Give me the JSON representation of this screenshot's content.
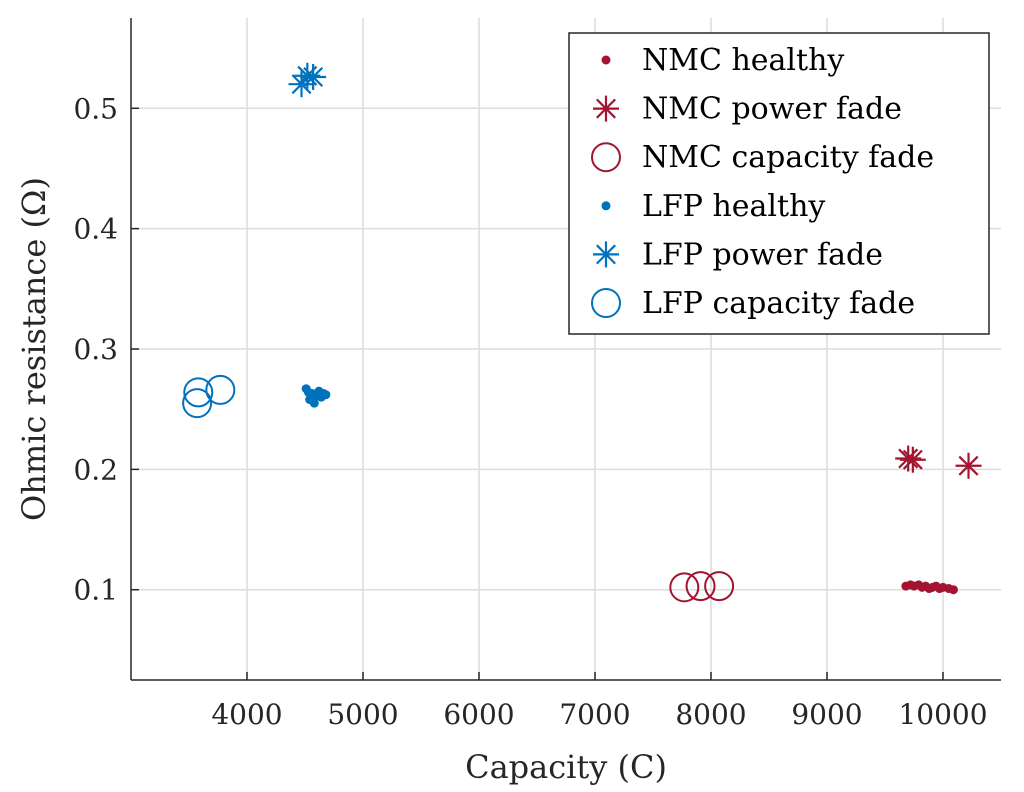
{
  "chart_data": {
    "type": "scatter",
    "title": "",
    "xlabel": "Capacity (C)",
    "ylabel": "Ohmic resistance (Ω)",
    "xlim": [
      3000,
      10500
    ],
    "ylim": [
      0.025,
      0.575
    ],
    "xticks": [
      4000,
      5000,
      6000,
      7000,
      8000,
      9000,
      10000
    ],
    "xtick_labels": [
      "4000",
      "5000",
      "6000",
      "7000",
      "8000",
      "9000",
      "10000"
    ],
    "yticks": [
      0.1,
      0.2,
      0.3,
      0.4,
      0.5
    ],
    "ytick_labels": [
      "0.1",
      "0.2",
      "0.3",
      "0.4",
      "0.5"
    ],
    "grid": true,
    "legend_position": "top-right",
    "series": [
      {
        "name": "NMC healthy",
        "marker": "dot",
        "color": "#A2142F",
        "points": [
          [
            9680,
            0.103
          ],
          [
            9720,
            0.104
          ],
          [
            9750,
            0.103
          ],
          [
            9790,
            0.104
          ],
          [
            9820,
            0.102
          ],
          [
            9850,
            0.103
          ],
          [
            9880,
            0.101
          ],
          [
            9910,
            0.102
          ],
          [
            9940,
            0.103
          ],
          [
            9970,
            0.101
          ],
          [
            10000,
            0.102
          ],
          [
            10050,
            0.101
          ],
          [
            10090,
            0.1
          ]
        ]
      },
      {
        "name": "NMC power fade",
        "marker": "star",
        "color": "#A2142F",
        "points": [
          [
            9700,
            0.209
          ],
          [
            9740,
            0.208
          ],
          [
            10220,
            0.203
          ]
        ]
      },
      {
        "name": "NMC capacity fade",
        "marker": "circle",
        "color": "#A2142F",
        "points": [
          [
            7770,
            0.102
          ],
          [
            7910,
            0.103
          ],
          [
            8070,
            0.103
          ]
        ]
      },
      {
        "name": "LFP healthy",
        "marker": "dot",
        "color": "#0072BD",
        "points": [
          [
            4510,
            0.267
          ],
          [
            4540,
            0.258
          ],
          [
            4560,
            0.263
          ],
          [
            4580,
            0.255
          ],
          [
            4600,
            0.261
          ],
          [
            4620,
            0.265
          ],
          [
            4640,
            0.26
          ],
          [
            4660,
            0.263
          ],
          [
            4680,
            0.262
          ],
          [
            4530,
            0.264
          ],
          [
            4570,
            0.259
          ]
        ]
      },
      {
        "name": "LFP power fade",
        "marker": "star",
        "color": "#0072BD",
        "points": [
          [
            4470,
            0.52
          ],
          [
            4520,
            0.527
          ],
          [
            4570,
            0.526
          ]
        ]
      },
      {
        "name": "LFP capacity fade",
        "marker": "circle",
        "color": "#0072BD",
        "points": [
          [
            3570,
            0.255
          ],
          [
            3580,
            0.264
          ],
          [
            3770,
            0.266
          ]
        ]
      }
    ]
  }
}
